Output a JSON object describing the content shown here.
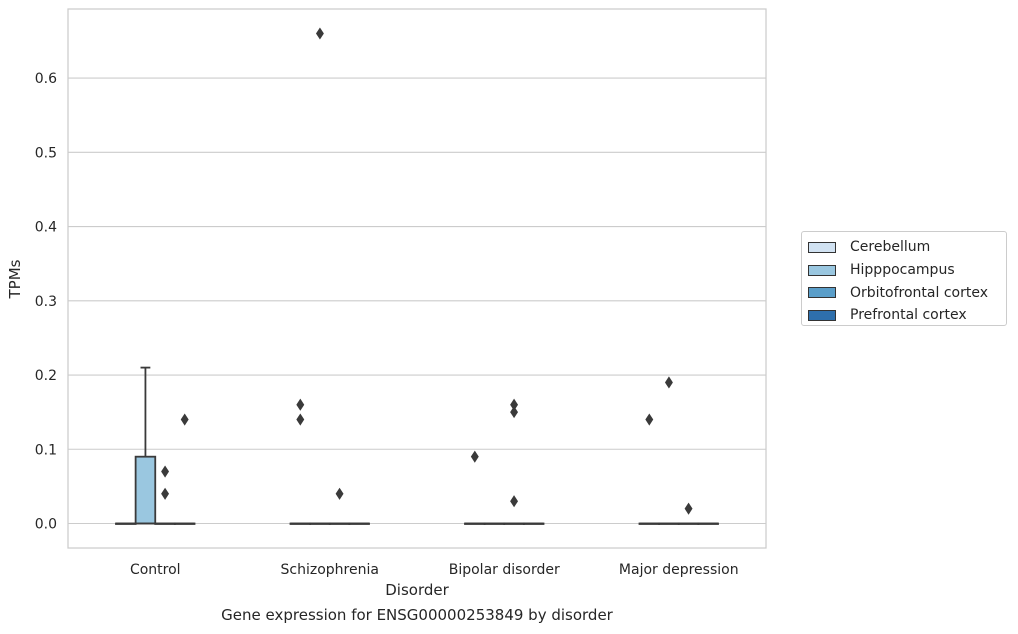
{
  "caption": "Gene expression for ENSG00000253849 by disorder",
  "chart_data": {
    "type": "box",
    "xlabel": "Disorder",
    "ylabel": "TPMs",
    "categories": [
      "Control",
      "Schizophrenia",
      "Bipolar disorder",
      "Major depression"
    ],
    "ylim": [
      -0.033,
      0.693
    ],
    "yticks": [
      0.0,
      0.1,
      0.2,
      0.3,
      0.4,
      0.5,
      0.6
    ],
    "ytick_labels": [
      "0.0",
      "0.1",
      "0.2",
      "0.3",
      "0.4",
      "0.5",
      "0.6"
    ],
    "grid": "horizontal",
    "legend_position": "right",
    "series": [
      {
        "name": "Cerebellum",
        "color": "#d1e2f2",
        "boxes": [
          {
            "q1": 0,
            "median": 0,
            "q3": 0,
            "whisker_low": 0,
            "whisker_high": 0,
            "outliers": []
          },
          {
            "q1": 0,
            "median": 0,
            "q3": 0,
            "whisker_low": 0,
            "whisker_high": 0,
            "outliers": [
              0.14,
              0.16
            ]
          },
          {
            "q1": 0,
            "median": 0,
            "q3": 0,
            "whisker_low": 0,
            "whisker_high": 0,
            "outliers": [
              0.09
            ]
          },
          {
            "q1": 0,
            "median": 0,
            "q3": 0,
            "whisker_low": 0,
            "whisker_high": 0,
            "outliers": [
              0.14
            ]
          }
        ]
      },
      {
        "name": "Hipppocampus",
        "color": "#9ac7e0",
        "boxes": [
          {
            "q1": 0,
            "median": 0,
            "q3": 0.09,
            "whisker_low": 0,
            "whisker_high": 0.21,
            "outliers": []
          },
          {
            "q1": 0,
            "median": 0,
            "q3": 0,
            "whisker_low": 0,
            "whisker_high": 0,
            "outliers": [
              0.66
            ]
          },
          {
            "q1": 0,
            "median": 0,
            "q3": 0,
            "whisker_low": 0,
            "whisker_high": 0,
            "outliers": []
          },
          {
            "q1": 0,
            "median": 0,
            "q3": 0,
            "whisker_low": 0,
            "whisker_high": 0,
            "outliers": [
              0.19
            ]
          }
        ]
      },
      {
        "name": "Orbitofrontal cortex",
        "color": "#5a9ec9",
        "boxes": [
          {
            "q1": 0,
            "median": 0,
            "q3": 0,
            "whisker_low": 0,
            "whisker_high": 0,
            "outliers": [
              0.04,
              0.07
            ]
          },
          {
            "q1": 0,
            "median": 0,
            "q3": 0,
            "whisker_low": 0,
            "whisker_high": 0,
            "outliers": [
              0.04
            ]
          },
          {
            "q1": 0,
            "median": 0,
            "q3": 0,
            "whisker_low": 0,
            "whisker_high": 0,
            "outliers": [
              0.03,
              0.15,
              0.16
            ]
          },
          {
            "q1": 0,
            "median": 0,
            "q3": 0,
            "whisker_low": 0,
            "whisker_high": 0,
            "outliers": [
              0.02
            ]
          }
        ]
      },
      {
        "name": "Prefrontal cortex",
        "color": "#2e6fac",
        "boxes": [
          {
            "q1": 0,
            "median": 0,
            "q3": 0,
            "whisker_low": 0,
            "whisker_high": 0,
            "outliers": [
              0.14
            ]
          },
          {
            "q1": 0,
            "median": 0,
            "q3": 0,
            "whisker_low": 0,
            "whisker_high": 0,
            "outliers": []
          },
          {
            "q1": 0,
            "median": 0,
            "q3": 0,
            "whisker_low": 0,
            "whisker_high": 0,
            "outliers": []
          },
          {
            "q1": 0,
            "median": 0,
            "q3": 0,
            "whisker_low": 0,
            "whisker_high": 0,
            "outliers": []
          }
        ]
      }
    ]
  }
}
